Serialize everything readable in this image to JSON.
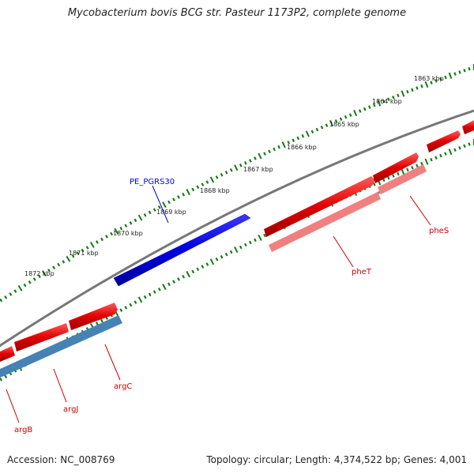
{
  "title": "Mycobacterium bovis BCG str. Pasteur 1173P2, complete genome",
  "ruler": {
    "ticks": [
      "1863 kbp",
      "1864 kbp",
      "1865 kbp",
      "1866 kbp",
      "1867 kbp",
      "1868 kbp",
      "1869 kbp",
      "1870 kbp",
      "1871 kbp",
      "1872 kbp"
    ]
  },
  "genes": [
    {
      "name": "PE_PGRS30",
      "color": "#0000ee"
    },
    {
      "name": "pheS",
      "color": "#dd0000"
    },
    {
      "name": "pheT",
      "color": "#dd0000"
    },
    {
      "name": "argC",
      "color": "#dd0000"
    },
    {
      "name": "argJ",
      "color": "#dd0000"
    },
    {
      "name": "argB",
      "color": "#dd0000"
    }
  ],
  "colors": {
    "forward_gene": "#0000ee",
    "reverse_gene": "#ee0000",
    "rna_gene": "#f08080",
    "other_gene": "#4682b4",
    "backbone": "#7a7a7a",
    "ruler_dots": "#1a7a1a"
  },
  "footer": {
    "accession": "Accession: NC_008769",
    "summary": "Topology: circular; Length: 4,374,522 bp; Genes: 4,001"
  }
}
